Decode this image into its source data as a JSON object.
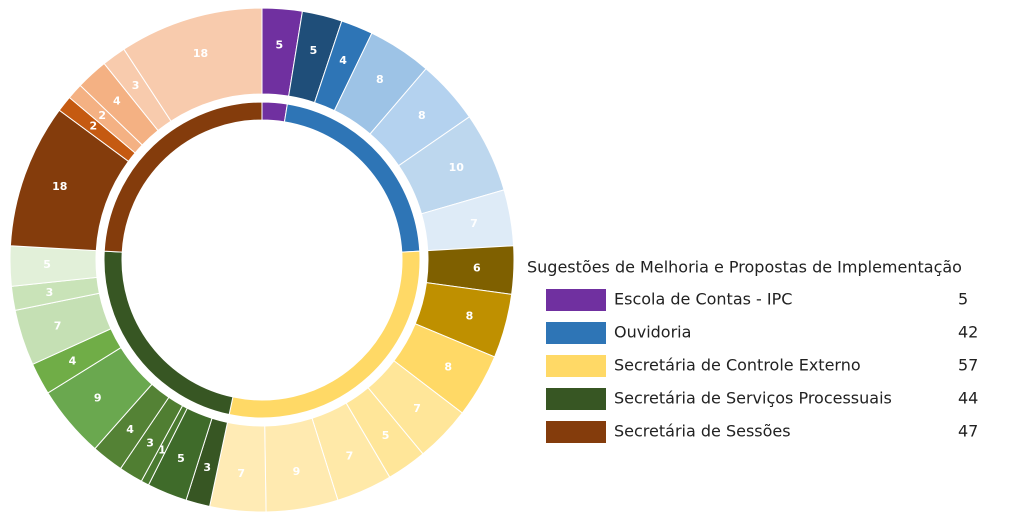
{
  "chart_data": {
    "type": "sunburst",
    "legend_title": "Sugestões de Melhoria e Propostas de Implementação",
    "series": [
      {
        "name": "Escola de Contas - IPC",
        "value": 5,
        "color": "#7030a0",
        "children": [
          {
            "value": 5,
            "color": "#7030a0"
          }
        ]
      },
      {
        "name": "Ouvidoria",
        "value": 42,
        "color": "#2e75b6",
        "children": [
          {
            "value": 5,
            "color": "#1f4e79"
          },
          {
            "value": 4,
            "color": "#2e75b6"
          },
          {
            "value": 8,
            "color": "#9dc3e6"
          },
          {
            "value": 8,
            "color": "#b4d2ef"
          },
          {
            "value": 10,
            "color": "#bdd7ee"
          },
          {
            "value": 7,
            "color": "#deebf7"
          }
        ]
      },
      {
        "name": "Secretária de Controle Externo",
        "value": 57,
        "color": "#ffd966",
        "children": [
          {
            "value": 6,
            "color": "#7f6000"
          },
          {
            "value": 8,
            "color": "#bf9000"
          },
          {
            "value": 8,
            "color": "#ffd966"
          },
          {
            "value": 7,
            "color": "#ffe699"
          },
          {
            "value": 5,
            "color": "#ffe699"
          },
          {
            "value": 7,
            "color": "#ffe9a8"
          },
          {
            "value": 9,
            "color": "#ffeab0"
          },
          {
            "value": 7,
            "color": "#ffebb5"
          }
        ]
      },
      {
        "name": "Secretária de Serviços Processuais",
        "value": 44,
        "color": "#375623",
        "children": [
          {
            "value": 3,
            "color": "#375623"
          },
          {
            "value": 5,
            "color": "#3f6b2a"
          },
          {
            "value": 1,
            "color": "#4a7a30"
          },
          {
            "value": 3,
            "color": "#507e32"
          },
          {
            "value": 4,
            "color": "#548235"
          },
          {
            "value": 9,
            "color": "#6aa84f"
          },
          {
            "value": 4,
            "color": "#70ad47"
          },
          {
            "value": 7,
            "color": "#c5e0b4"
          },
          {
            "value": 3,
            "color": "#c9e3b8"
          },
          {
            "value": 5,
            "color": "#e2f0d9"
          }
        ]
      },
      {
        "name": "Secretária de Sessões",
        "value": 47,
        "color": "#843c0c",
        "children": [
          {
            "value": 18,
            "color": "#843c0c"
          },
          {
            "value": 2,
            "color": "#c55a11"
          },
          {
            "value": 2,
            "color": "#f4b183"
          },
          {
            "value": 4,
            "color": "#f4b183"
          },
          {
            "value": 3,
            "color": "#f8cbad"
          },
          {
            "value": 18,
            "color": "#f8cbad"
          }
        ]
      }
    ]
  }
}
